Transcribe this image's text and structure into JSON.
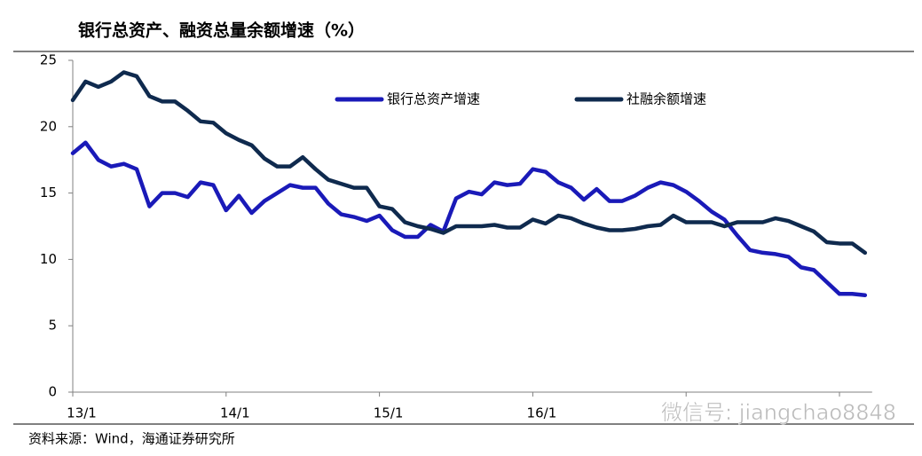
{
  "chart_data": {
    "type": "line",
    "title": "银行总资产、融资总量余额增速（%）",
    "source": "资料来源：Wind，海通证券研究所",
    "watermark": "微信号: jiangchao8848",
    "categories": [
      "13/1",
      null,
      null,
      null,
      null,
      null,
      null,
      null,
      null,
      null,
      null,
      null,
      "14/1",
      null,
      null,
      null,
      null,
      null,
      null,
      null,
      null,
      null,
      null,
      null,
      "15/1",
      null,
      null,
      null,
      null,
      null,
      null,
      null,
      null,
      null,
      null,
      null,
      "16/1",
      null,
      null,
      null,
      null,
      null,
      null,
      null,
      null,
      null,
      null,
      null,
      null,
      null,
      null,
      null,
      null,
      null,
      null,
      null,
      null,
      null,
      null,
      null,
      null,
      null,
      null
    ],
    "series": [
      {
        "name": "银行总资产增速",
        "color": "#1a1ab8",
        "values": [
          18,
          18.8,
          17.5,
          17.0,
          17.2,
          16.8,
          14.0,
          15.0,
          15.0,
          14.7,
          15.8,
          15.6,
          13.7,
          14.8,
          13.5,
          14.4,
          15.0,
          15.6,
          15.4,
          15.4,
          14.2,
          13.4,
          13.2,
          12.9,
          13.3,
          12.2,
          11.7,
          11.7,
          12.6,
          12.1,
          14.6,
          15.1,
          14.9,
          15.8,
          15.6,
          15.7,
          16.8,
          16.6,
          15.8,
          15.4,
          14.5,
          15.3,
          14.4,
          14.4,
          14.8,
          15.4,
          15.8,
          15.6,
          15.1,
          14.4,
          13.6,
          13.0,
          11.8,
          10.7,
          10.5,
          10.4,
          10.2,
          9.4,
          9.2,
          8.3,
          7.4,
          7.4,
          7.3
        ]
      },
      {
        "name": "社融余额增速",
        "color": "#0f2a4e",
        "values": [
          22,
          23.4,
          23.0,
          23.4,
          24.1,
          23.8,
          22.3,
          21.9,
          21.9,
          21.2,
          20.4,
          20.3,
          19.5,
          19.0,
          18.6,
          17.6,
          17.0,
          17.0,
          17.7,
          16.8,
          16.0,
          15.7,
          15.4,
          15.4,
          14.0,
          13.8,
          12.8,
          12.5,
          12.3,
          12.0,
          12.5,
          12.5,
          12.5,
          12.6,
          12.4,
          12.4,
          13.0,
          12.7,
          13.3,
          13.1,
          12.7,
          12.4,
          12.2,
          12.2,
          12.3,
          12.5,
          12.6,
          13.3,
          12.8,
          12.8,
          12.8,
          12.5,
          12.8,
          12.8,
          12.8,
          13.1,
          12.9,
          12.5,
          12.1,
          11.3,
          11.2,
          11.2,
          10.5
        ]
      }
    ],
    "ylim": [
      0,
      25
    ],
    "yticks": [
      0,
      5,
      10,
      15,
      20,
      25
    ],
    "grid": false
  }
}
